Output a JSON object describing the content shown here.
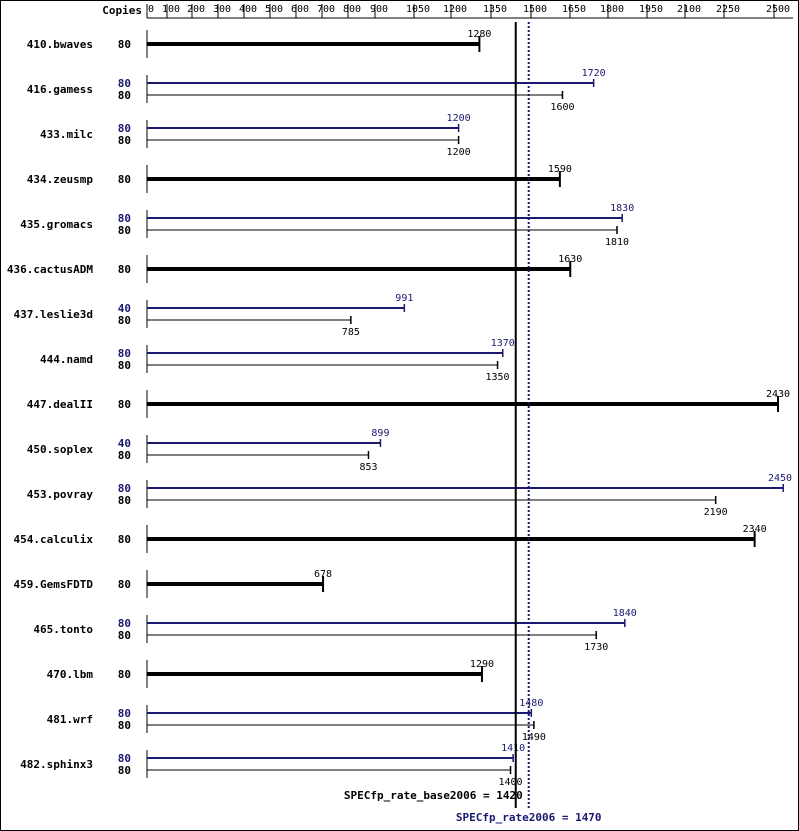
{
  "chart_data": {
    "type": "bar",
    "orientation": "horizontal",
    "copies_header": "Copies",
    "x_ticks": [
      0,
      100,
      200,
      300,
      400,
      500,
      600,
      700,
      800,
      900,
      1050,
      1200,
      1350,
      1500,
      1650,
      1800,
      1950,
      2100,
      2250,
      2500
    ],
    "colors": {
      "base": "#000000",
      "peak": "#191970"
    },
    "benchmarks": [
      {
        "name": "410.bwaves",
        "base": {
          "copies": "80",
          "value": 1280,
          "label": "1280"
        }
      },
      {
        "name": "416.gamess",
        "peak": {
          "copies": "80",
          "value": 1720,
          "label": "1720"
        },
        "base": {
          "copies": "80",
          "value": 1600,
          "label": "1600"
        }
      },
      {
        "name": "433.milc",
        "peak": {
          "copies": "80",
          "value": 1200,
          "label": "1200"
        },
        "base": {
          "copies": "80",
          "value": 1200,
          "label": "1200"
        }
      },
      {
        "name": "434.zeusmp",
        "base": {
          "copies": "80",
          "value": 1590,
          "label": "1590"
        }
      },
      {
        "name": "435.gromacs",
        "peak": {
          "copies": "80",
          "value": 1830,
          "label": "1830"
        },
        "base": {
          "copies": "80",
          "value": 1810,
          "label": "1810"
        }
      },
      {
        "name": "436.cactusADM",
        "base": {
          "copies": "80",
          "value": 1630,
          "label": "1630"
        }
      },
      {
        "name": "437.leslie3d",
        "peak": {
          "copies": "40",
          "value": 991,
          "label": "991"
        },
        "base": {
          "copies": "80",
          "value": 785,
          "label": "785"
        }
      },
      {
        "name": "444.namd",
        "peak": {
          "copies": "80",
          "value": 1370,
          "label": "1370"
        },
        "base": {
          "copies": "80",
          "value": 1350,
          "label": "1350"
        }
      },
      {
        "name": "447.dealII",
        "base": {
          "copies": "80",
          "value": 2430,
          "label": "2430"
        }
      },
      {
        "name": "450.soplex",
        "peak": {
          "copies": "40",
          "value": 899,
          "label": "899"
        },
        "base": {
          "copies": "80",
          "value": 853,
          "label": "853"
        }
      },
      {
        "name": "453.povray",
        "peak": {
          "copies": "80",
          "value": 2450,
          "label": "2450"
        },
        "base": {
          "copies": "80",
          "value": 2190,
          "label": "2190"
        }
      },
      {
        "name": "454.calculix",
        "base": {
          "copies": "80",
          "value": 2340,
          "label": "2340"
        }
      },
      {
        "name": "459.GemsFDTD",
        "base": {
          "copies": "80",
          "value": 678,
          "label": "678"
        }
      },
      {
        "name": "465.tonto",
        "peak": {
          "copies": "80",
          "value": 1840,
          "label": "1840"
        },
        "base": {
          "copies": "80",
          "value": 1730,
          "label": "1730"
        }
      },
      {
        "name": "470.lbm",
        "base": {
          "copies": "80",
          "value": 1290,
          "label": "1290"
        }
      },
      {
        "name": "481.wrf",
        "peak": {
          "copies": "80",
          "value": 1480,
          "label": "1480"
        },
        "base": {
          "copies": "80",
          "value": 1490,
          "label": "1490"
        }
      },
      {
        "name": "482.sphinx3",
        "peak": {
          "copies": "80",
          "value": 1410,
          "label": "1410"
        },
        "base": {
          "copies": "80",
          "value": 1400,
          "label": "1400"
        }
      }
    ],
    "reference_lines": {
      "base": {
        "value": 1420,
        "label": "SPECfp_rate_base2006 = 1420"
      },
      "peak": {
        "value": 1470,
        "label": "SPECfp_rate2006 = 1470"
      }
    }
  }
}
